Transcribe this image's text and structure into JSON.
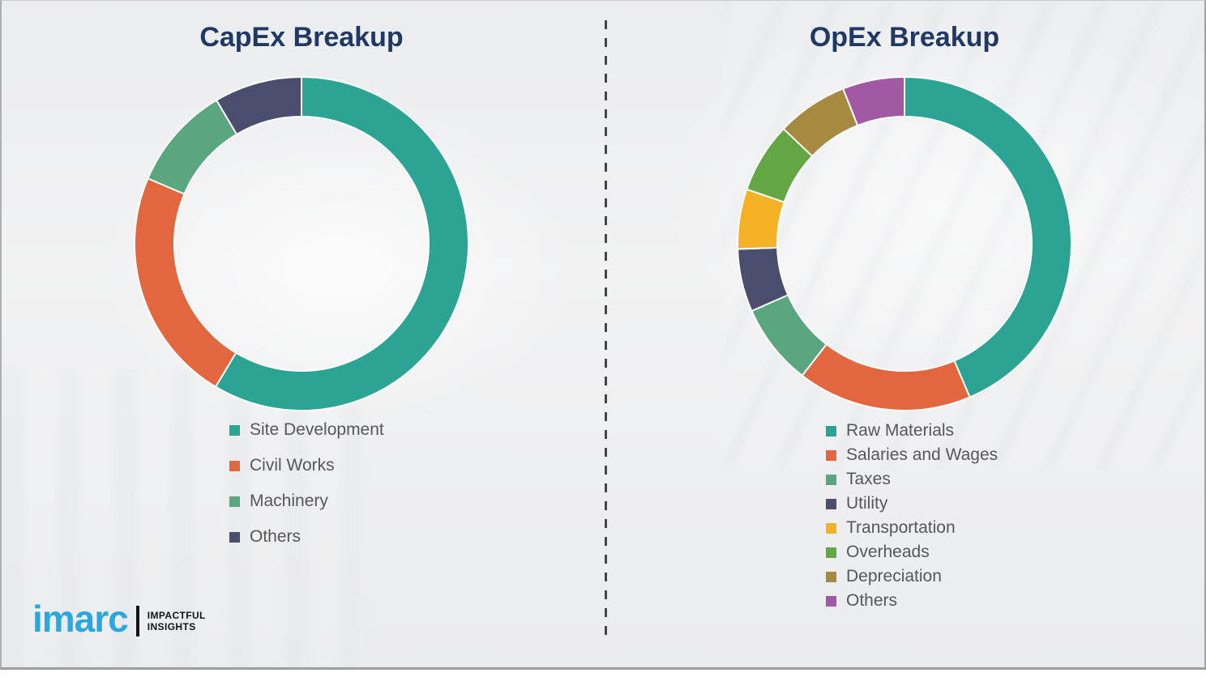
{
  "page": {
    "background_color": "#f1f1f2",
    "title_color": "#203864",
    "legend_text_color": "#575757",
    "divider_style": "vertical-dashed"
  },
  "chart_data": [
    {
      "type": "pie",
      "variant": "donut",
      "title": "CapEx Breakup",
      "unit": "percent_estimated",
      "legend_position": "below-left",
      "categories": [
        "Site Development",
        "Civil Works",
        "Machinery",
        "Others"
      ],
      "values": [
        58.6,
        22.8,
        10.1,
        8.5
      ],
      "colors": [
        "#2BA493",
        "#E2673F",
        "#5AA67E",
        "#4A4E6D"
      ]
    },
    {
      "type": "pie",
      "variant": "donut",
      "title": "OpEx Breakup",
      "unit": "percent_estimated",
      "legend_position": "below-left",
      "categories": [
        "Raw Materials",
        "Salaries and Wages",
        "Taxes",
        "Utility",
        "Transportation",
        "Overheads",
        "Depreciation",
        "Others"
      ],
      "values": [
        43.6,
        16.9,
        7.9,
        6.1,
        5.8,
        6.8,
        6.9,
        6.0
      ],
      "colors": [
        "#2BA493",
        "#E2673F",
        "#5AA67E",
        "#4A4E6D",
        "#F6B227",
        "#62A744",
        "#A58A3F",
        "#A159A3"
      ]
    }
  ],
  "logo": {
    "brand": "imarc",
    "brand_color": "#29A8DF",
    "tagline_line1": "IMPACTFUL",
    "tagline_line2": "INSIGHTS"
  }
}
